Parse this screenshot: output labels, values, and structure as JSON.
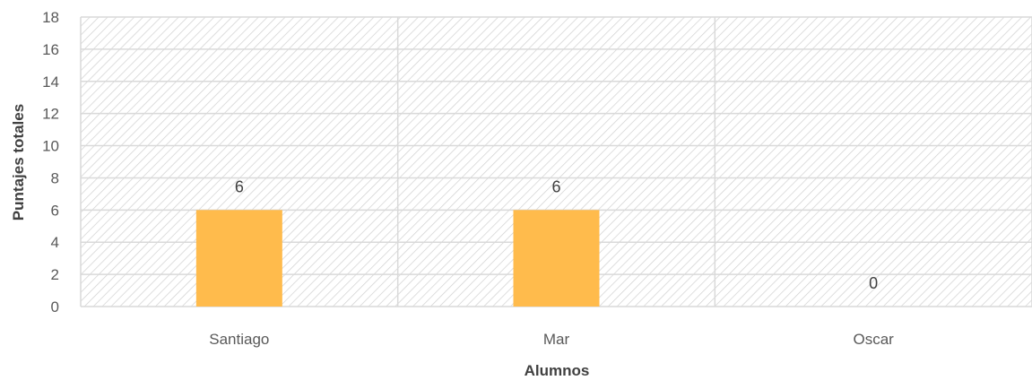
{
  "chart_data": {
    "type": "bar",
    "categories": [
      "Santiago",
      "Mar",
      "Oscar"
    ],
    "values": [
      6,
      6,
      0
    ],
    "data_labels": [
      "6",
      "6",
      "0"
    ],
    "title": "",
    "xlabel": "Alumnos",
    "ylabel": "Puntajes totales",
    "ylim": [
      0,
      18
    ],
    "yticks": [
      0,
      2,
      4,
      6,
      8,
      10,
      12,
      14,
      16,
      18
    ],
    "grid": true,
    "legend": "none",
    "colors": {
      "bar": "#FFBB4C",
      "gridline": "#D9D9D9",
      "hatch": "#D0D0D0",
      "text": "#595959"
    }
  }
}
